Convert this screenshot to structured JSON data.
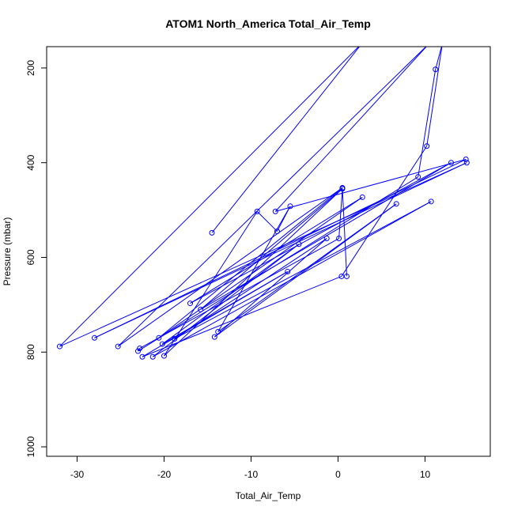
{
  "chart_data": {
    "type": "scatter",
    "title": "ATOM1 North_America Total_Air_Temp",
    "xlabel": "Total_Air_Temp",
    "ylabel": "Pressure (mbar)",
    "xlim": [
      -33.5,
      17.5
    ],
    "ylim": [
      1020,
      155
    ],
    "y_reversed": true,
    "x_ticks": [
      -30,
      -20,
      -10,
      0,
      10
    ],
    "x_tick_labels": [
      "-30",
      "-20",
      "-10",
      "0",
      "10"
    ],
    "y_ticks": [
      200,
      400,
      600,
      800,
      1000
    ],
    "y_tick_labels": [
      "200",
      "400",
      "600",
      "800",
      "1000"
    ],
    "grid": false,
    "series": [
      {
        "color": "#0000ff",
        "marker": "open-circle",
        "connected": true,
        "points": [
          {
            "x": -14.5,
            "y": 548
          },
          {
            "x": 2.8,
            "y": 147
          },
          {
            "x": -32.0,
            "y": 788
          },
          {
            "x": 14.8,
            "y": 400
          },
          {
            "x": -28.0,
            "y": 770
          },
          {
            "x": 14.7,
            "y": 393
          },
          {
            "x": -7.2,
            "y": 503
          },
          {
            "x": 10.5,
            "y": 148
          },
          {
            "x": -25.3,
            "y": 788
          },
          {
            "x": 0.5,
            "y": 453
          },
          {
            "x": -20.6,
            "y": 770
          },
          {
            "x": 2.8,
            "y": 473
          },
          {
            "x": -17.0,
            "y": 697
          },
          {
            "x": 13.0,
            "y": 400
          },
          {
            "x": -15.8,
            "y": 710
          },
          {
            "x": 0.5,
            "y": 455
          },
          {
            "x": -20.0,
            "y": 808
          },
          {
            "x": -9.3,
            "y": 503
          },
          {
            "x": -7.0,
            "y": 545
          },
          {
            "x": -5.5,
            "y": 492
          },
          {
            "x": -13.8,
            "y": 757
          },
          {
            "x": 6.7,
            "y": 487
          },
          {
            "x": -14.2,
            "y": 768
          },
          {
            "x": -1.3,
            "y": 560
          },
          {
            "x": -18.8,
            "y": 772
          },
          {
            "x": 10.7,
            "y": 482
          },
          {
            "x": -21.3,
            "y": 810
          },
          {
            "x": -4.5,
            "y": 572
          },
          {
            "x": -20.2,
            "y": 783
          },
          {
            "x": -5.8,
            "y": 630
          },
          {
            "x": -22.5,
            "y": 810
          },
          {
            "x": 0.4,
            "y": 640
          },
          {
            "x": 10.2,
            "y": 365
          },
          {
            "x": 12.0,
            "y": 148
          },
          {
            "x": 11.2,
            "y": 203
          },
          {
            "x": 9.2,
            "y": 430
          },
          {
            "x": -23.0,
            "y": 798
          },
          {
            "x": -22.8,
            "y": 792
          },
          {
            "x": 0.1,
            "y": 560
          },
          {
            "x": 0.5,
            "y": 455
          },
          {
            "x": 1.0,
            "y": 640
          }
        ]
      }
    ]
  }
}
